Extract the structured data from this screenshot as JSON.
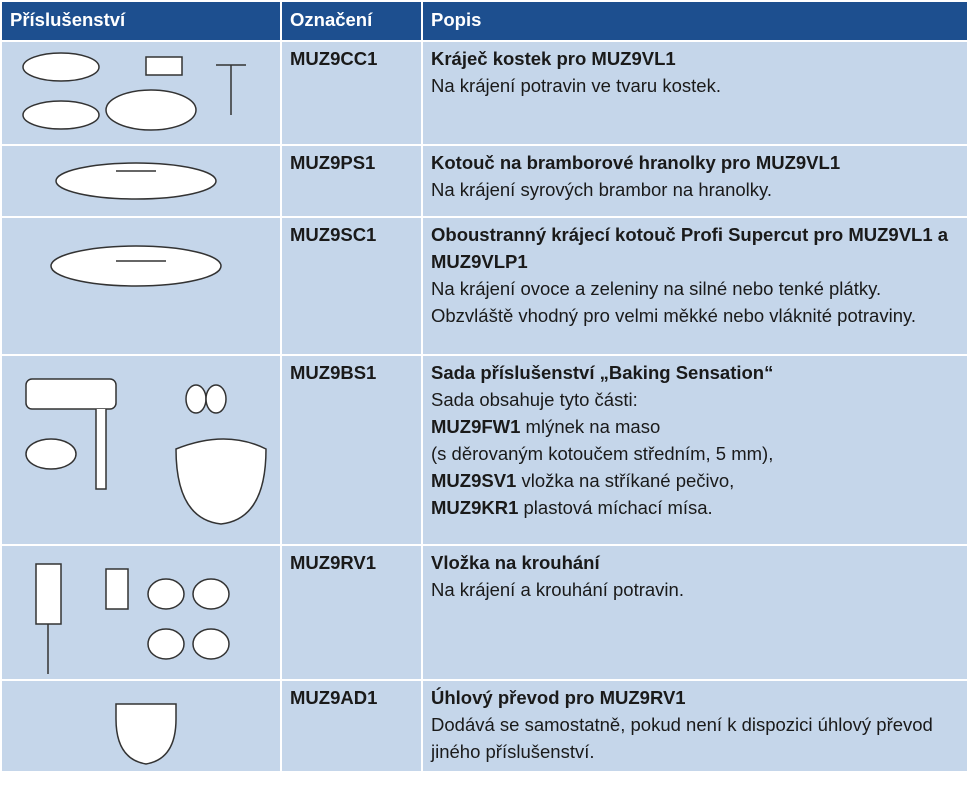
{
  "table": {
    "header": [
      "Příslušenství",
      "Označení",
      "Popis"
    ],
    "rows": [
      {
        "code": "MUZ9CC1",
        "title": "Kráječ kostek pro MUZ9VL1",
        "description": [
          {
            "text": "Na krájení potravin ve tvaru kostek."
          }
        ]
      },
      {
        "code": "MUZ9PS1",
        "title": "Kotouč na bramborové hranolky pro MUZ9VL1",
        "description": [
          {
            "text": "Na krájení syrových brambor na hranolky."
          }
        ]
      },
      {
        "code": "MUZ9SC1",
        "title": "Oboustranný krájecí kotouč Profi Supercut pro MUZ9VL1 a MUZ9VLP1",
        "description": [
          {
            "text": "Na krájení ovoce a zeleniny na silné nebo tenké plátky. Obzvláště vhodný pro velmi měkké nebo vláknité potraviny."
          }
        ]
      },
      {
        "code": "MUZ9BS1",
        "title": "Sada příslušenství „Baking Sensation“",
        "description": [
          {
            "text": "Sada obsahuje tyto části:"
          },
          {
            "bold": "MUZ9FW1",
            "text": " mlýnek na maso"
          },
          {
            "text": "(s děrovaným kotoučem středním, 5 mm),"
          },
          {
            "bold": "MUZ9SV1",
            "text": " vložka na stříkané pečivo,"
          },
          {
            "bold": "MUZ9KR1",
            "text": " plastová míchací mísa."
          }
        ]
      },
      {
        "code": "MUZ9RV1",
        "title": "Vložka na krouhání",
        "description": [
          {
            "text": "Na krájení a krouhání potravin."
          }
        ]
      },
      {
        "code": "MUZ9AD1",
        "title": "Úhlový převod pro MUZ9RV1",
        "description": [
          {
            "text": "Dodává se samostatně, pokud není k dispozici úhlový převod jiného příslušenství."
          }
        ]
      }
    ]
  }
}
